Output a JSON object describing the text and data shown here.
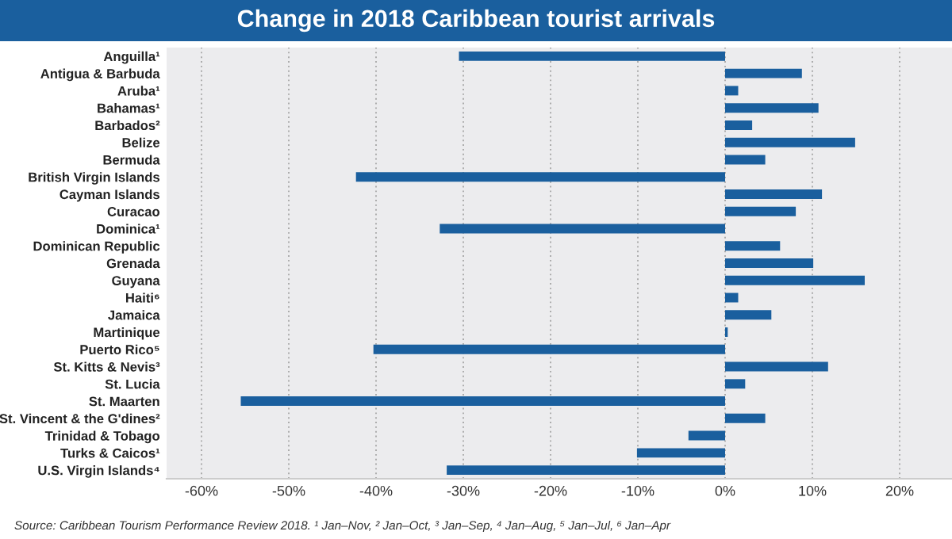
{
  "chart_data": {
    "type": "bar",
    "orientation": "horizontal",
    "title": "Change in 2018 Caribbean tourist arrivals",
    "categories": [
      "Anguilla¹",
      "Antigua & Barbuda",
      "Aruba¹",
      "Bahamas¹",
      "Barbados²",
      "Belize",
      "Bermuda",
      "British Virgin Islands",
      "Cayman Islands",
      "Curacao",
      "Dominica¹",
      "Dominican Republic",
      "Grenada",
      "Guyana",
      "Haiti⁶",
      "Jamaica",
      "Martinique",
      "Puerto Rico⁵",
      "St. Kitts & Nevis³",
      "St. Lucia",
      "St. Maarten",
      "St. Vincent & the G'dines²",
      "Trinidad & Tobago",
      "Turks & Caicos¹",
      "U.S. Virgin Islands⁴"
    ],
    "values": [
      -30.5,
      8.8,
      1.5,
      10.7,
      3.1,
      14.9,
      4.6,
      -42.3,
      11.1,
      8.1,
      -32.7,
      6.3,
      10.1,
      16.0,
      1.5,
      5.3,
      0.3,
      -40.3,
      11.8,
      2.3,
      -55.5,
      4.6,
      -4.2,
      -10.1,
      -31.9
    ],
    "color": "#1a5f9e",
    "xlim": [
      -64,
      26
    ],
    "xticks": [
      {
        "value": -60,
        "label": "-60%"
      },
      {
        "value": -50,
        "label": "-50%"
      },
      {
        "value": -40,
        "label": "-40%"
      },
      {
        "value": -30,
        "label": "-30%"
      },
      {
        "value": -20,
        "label": "-20%"
      },
      {
        "value": -10,
        "label": "-10%"
      },
      {
        "value": 0,
        "label": "0%"
      },
      {
        "value": 10,
        "label": "10%"
      },
      {
        "value": 20,
        "label": "20%"
      }
    ],
    "grid": "x",
    "annotations": [
      "Source: Caribbean Tourism Performance Review 2018. ¹ Jan–Nov, ² Jan–Oct, ³ Jan–Sep, ⁴ Jan–Aug, ⁵ Jan–Jul, ⁶ Jan–Apr"
    ]
  }
}
